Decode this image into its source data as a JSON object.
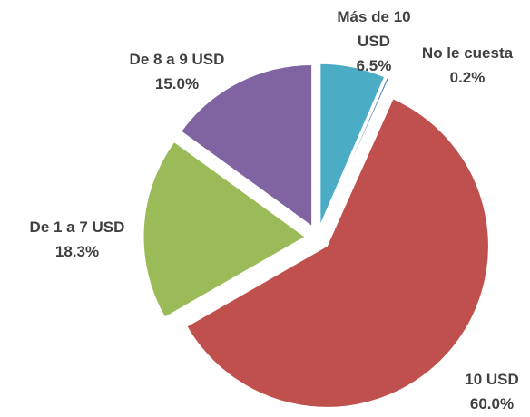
{
  "chart_data": {
    "type": "pie",
    "categories": [
      "Más de 10 USD",
      "No le cuesta",
      "10 USD",
      "De 1 a 7 USD",
      "De 8 a 9 USD"
    ],
    "values": [
      6.5,
      0.2,
      60.0,
      18.3,
      15.0
    ],
    "value_labels": [
      "6.5%",
      "0.2%",
      "60.0%",
      "18.3%",
      "15.0%"
    ],
    "colors": [
      "#4bacc6",
      "#4f81bd",
      "#c0504d",
      "#9bbb59",
      "#8064a2"
    ]
  }
}
